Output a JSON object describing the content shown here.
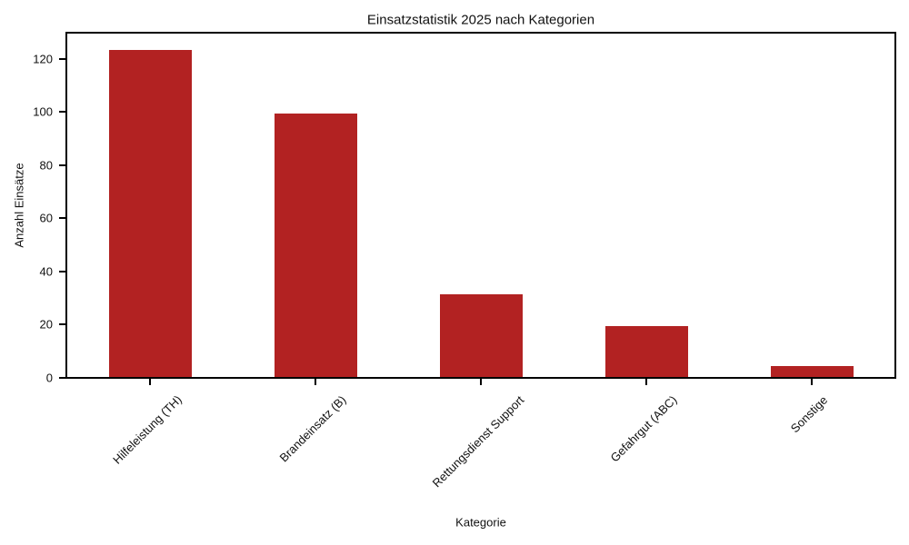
{
  "chart_data": {
    "type": "bar",
    "title": "Einsatzstatistik 2025 nach Kategorien",
    "xlabel": "Kategorie",
    "ylabel": "Anzahl Einsätze",
    "categories": [
      "Hilfeleistung (TH)",
      "Brandeinsatz (B)",
      "Rettungsdienst Support",
      "Gefahrgut (ABC)",
      "Sonstige"
    ],
    "values": [
      123,
      99,
      31,
      19,
      4
    ],
    "yticks": [
      0,
      20,
      40,
      60,
      80,
      100,
      120
    ],
    "ylim": [
      0,
      129.15
    ],
    "x_tick_rotation_deg": 45,
    "grid": false,
    "legend": "none",
    "bar_color": "#b22222"
  },
  "colors": {
    "bar": "#b22222",
    "spine": "#000000",
    "text": "#111111",
    "background": "#ffffff"
  }
}
